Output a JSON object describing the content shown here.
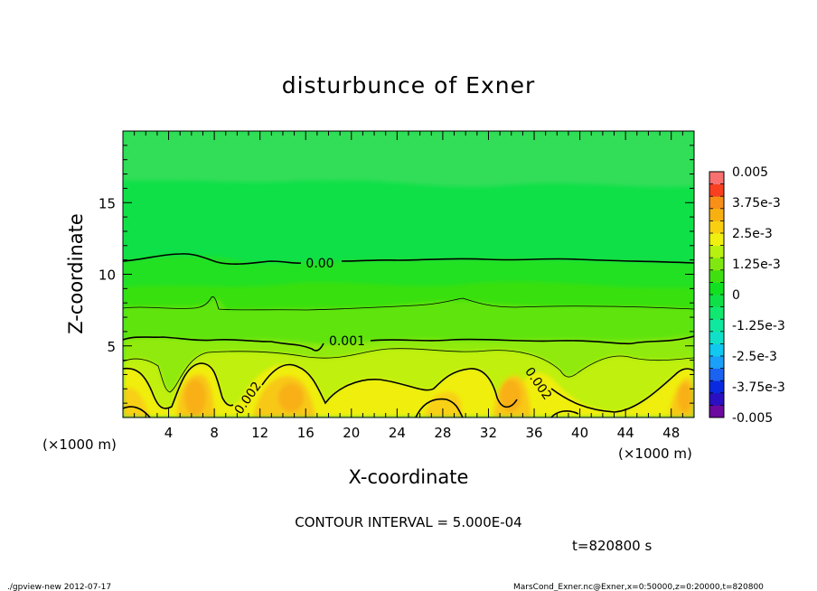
{
  "chart_data": {
    "type": "heatmap",
    "title": "disturbunce of Exner",
    "xlabel": "X-coordinate",
    "ylabel": "Z-coordinate",
    "x_unit_left": "(×1000 m)",
    "x_unit_right": "(×1000 m)",
    "xlim": [
      0,
      50
    ],
    "ylim": [
      0,
      20
    ],
    "x_ticks": [
      4,
      8,
      12,
      16,
      20,
      24,
      28,
      32,
      36,
      40,
      44,
      48
    ],
    "y_ticks": [
      5,
      10,
      15
    ],
    "colorbar": {
      "labels": [
        "0.005",
        "3.75e-3",
        "2.5e-3",
        "1.25e-3",
        "0",
        "-1.25e-3",
        "-2.5e-3",
        "-3.75e-3",
        "-0.005"
      ],
      "levels": [
        -0.005,
        -0.0045,
        -0.004,
        -0.0035,
        -0.003,
        -0.0025,
        -0.002,
        -0.0015,
        -0.001,
        -0.0005,
        0,
        0.0005,
        0.001,
        0.0015,
        0.002,
        0.0025,
        0.003,
        0.0035,
        0.004,
        0.0045,
        0.005
      ],
      "colors": [
        "#6a0a9e",
        "#2a10c0",
        "#0a2ae0",
        "#1a62f0",
        "#1aa0f8",
        "#10c8f0",
        "#10e0c8",
        "#10e8a0",
        "#10e870",
        "#10e048",
        "#10e020",
        "#40e010",
        "#80e810",
        "#b8f010",
        "#f0f010",
        "#f8d010",
        "#f8b010",
        "#f89018",
        "#f84020",
        "#f87070"
      ]
    },
    "contour_labels": [
      "0.00",
      "0.001",
      "0.002",
      "0.002"
    ],
    "contour_interval": "CONTOUR INTERVAL = 5.000E-04",
    "time": "t=820800 s"
  },
  "footer": {
    "left": "./gpview-new  2012-07-17",
    "right": "MarsCond_Exner.nc@Exner,x=0:50000,z=0:20000,t=820800"
  }
}
